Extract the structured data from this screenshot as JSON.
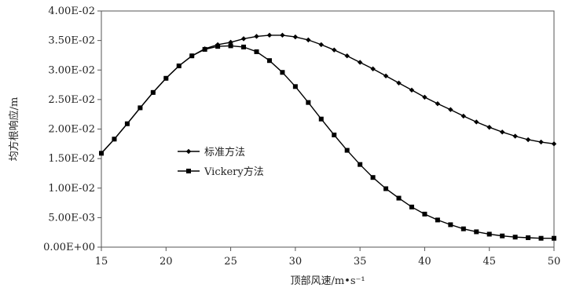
{
  "chart_data": {
    "type": "line",
    "title": "",
    "xlabel": "顶部风速/m•s⁻¹",
    "ylabel": "均方根响应/m",
    "xlim": [
      15,
      50
    ],
    "ylim": [
      0,
      0.04
    ],
    "x_ticks": [
      "15",
      "20",
      "25",
      "30",
      "35",
      "40",
      "45",
      "50"
    ],
    "y_ticks": [
      "0.00E+00",
      "5.00E-03",
      "1.00E-02",
      "1.50E-02",
      "2.00E-02",
      "2.50E-02",
      "3.00E-02",
      "3.50E-02",
      "4.00E-02"
    ],
    "grid": false,
    "legend_position": "center-left",
    "series": [
      {
        "name": "标准方法",
        "marker": "diamond",
        "color": "#000000",
        "x": [
          15,
          16,
          17,
          18,
          19,
          20,
          21,
          22,
          23,
          24,
          25,
          26,
          27,
          28,
          29,
          30,
          31,
          32,
          33,
          34,
          35,
          36,
          37,
          38,
          39,
          40,
          41,
          42,
          43,
          44,
          45,
          46,
          47,
          48,
          49,
          50
        ],
        "y": [
          0.0159,
          0.0183,
          0.0209,
          0.0236,
          0.0262,
          0.0286,
          0.0307,
          0.0324,
          0.0336,
          0.0343,
          0.0347,
          0.0353,
          0.0357,
          0.0359,
          0.0359,
          0.0356,
          0.0351,
          0.0343,
          0.0334,
          0.0324,
          0.0313,
          0.0302,
          0.029,
          0.0278,
          0.0266,
          0.0254,
          0.0243,
          0.0233,
          0.0222,
          0.0212,
          0.0203,
          0.0195,
          0.0188,
          0.0182,
          0.0178,
          0.0175
        ]
      },
      {
        "name": "Vickery方法",
        "marker": "square",
        "color": "#000000",
        "x": [
          15,
          16,
          17,
          18,
          19,
          20,
          21,
          22,
          23,
          24,
          25,
          26,
          27,
          28,
          29,
          30,
          31,
          32,
          33,
          34,
          35,
          36,
          37,
          38,
          39,
          40,
          41,
          42,
          43,
          44,
          45,
          46,
          47,
          48,
          49,
          50
        ],
        "y": [
          0.0159,
          0.0183,
          0.0209,
          0.0236,
          0.0262,
          0.0286,
          0.0307,
          0.0324,
          0.0335,
          0.034,
          0.0341,
          0.0339,
          0.0331,
          0.0316,
          0.0296,
          0.0272,
          0.0245,
          0.0217,
          0.019,
          0.0164,
          0.014,
          0.0118,
          0.0099,
          0.0083,
          0.0068,
          0.0056,
          0.0046,
          0.0038,
          0.0031,
          0.0026,
          0.0022,
          0.0019,
          0.0017,
          0.0016,
          0.0015,
          0.0015
        ]
      }
    ]
  }
}
